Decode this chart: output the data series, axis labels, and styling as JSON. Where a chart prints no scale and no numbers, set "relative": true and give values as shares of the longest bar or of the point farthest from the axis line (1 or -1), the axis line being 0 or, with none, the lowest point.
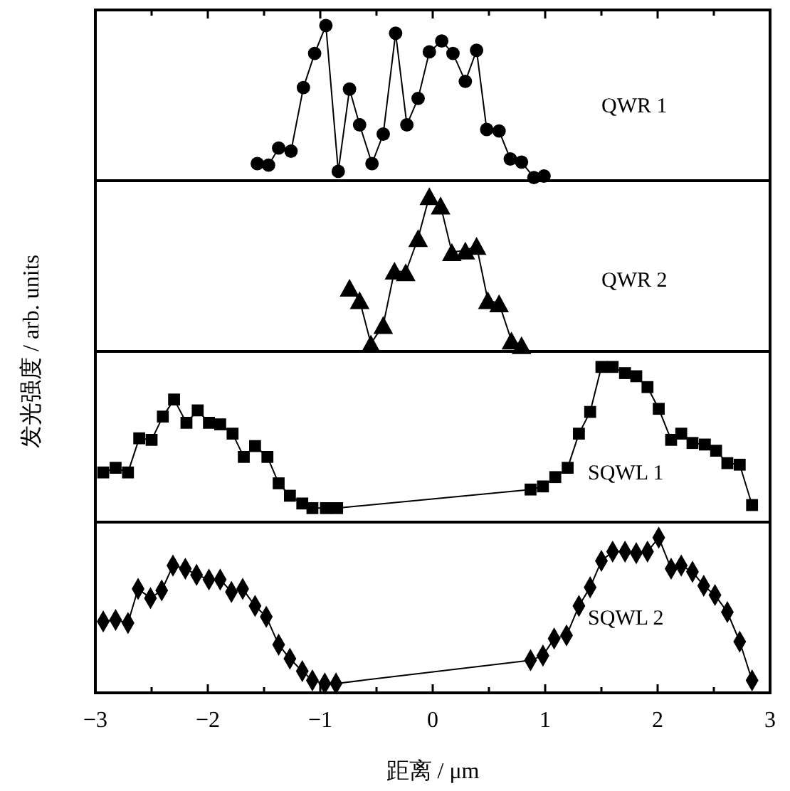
{
  "chart_data": [
    {
      "type": "line",
      "relative": true,
      "ylabel": "发光强度 / arb. units",
      "xlim": [
        -3,
        3
      ],
      "tick_labels": false,
      "marker": "circle",
      "line_style": "solid",
      "xticks": [
        {
          "value": -3,
          "label": null
        },
        {
          "value": -2.5,
          "label": null
        },
        {
          "value": -2,
          "label": null
        },
        {
          "value": -1.5,
          "label": null
        },
        {
          "value": -1,
          "label": null
        },
        {
          "value": -0.5,
          "label": null
        },
        {
          "value": 0,
          "label": null
        },
        {
          "value": 0.5,
          "label": null
        },
        {
          "value": 1,
          "label": null
        },
        {
          "value": 1.5,
          "label": null
        },
        {
          "value": 2,
          "label": null
        },
        {
          "value": 2.5,
          "label": null
        },
        {
          "value": 3,
          "label": null
        }
      ],
      "series": [
        {
          "name": "QWR 1",
          "color": "#000000",
          "x": [
            -1.56,
            -1.46,
            -1.37,
            -1.26,
            -1.15,
            -1.05,
            -0.95,
            -0.84,
            -0.74,
            -0.65,
            -0.54,
            -0.44,
            -0.33,
            -0.23,
            -0.13,
            -0.03,
            0.08,
            0.18,
            0.29,
            0.39,
            0.48,
            0.59,
            0.69,
            0.79,
            0.9,
            0.99
          ],
          "values": [
            0.11,
            0.1,
            0.21,
            0.19,
            0.6,
            0.82,
            1.0,
            0.06,
            0.59,
            0.36,
            0.11,
            0.3,
            0.95,
            0.36,
            0.53,
            0.83,
            0.9,
            0.82,
            0.64,
            0.84,
            0.33,
            0.32,
            0.14,
            0.12,
            0.02,
            0.03
          ]
        }
      ]
    },
    {
      "type": "line",
      "relative": true,
      "xlim": [
        -3,
        3
      ],
      "tick_labels": false,
      "marker": "triangle",
      "line_style": "solid",
      "series": [
        {
          "name": "QWR 2",
          "color": "#000000",
          "x": [
            -0.74,
            -0.65,
            -0.55,
            -0.44,
            -0.34,
            -0.24,
            -0.13,
            -0.03,
            0.07,
            0.17,
            0.29,
            0.39,
            0.49,
            0.59,
            0.7,
            0.79
          ],
          "values": [
            0.41,
            0.33,
            0.05,
            0.17,
            0.52,
            0.51,
            0.73,
            1.0,
            0.94,
            0.64,
            0.65,
            0.68,
            0.33,
            0.31,
            0.07,
            0.04
          ]
        }
      ]
    },
    {
      "type": "line",
      "relative": true,
      "xlim": [
        -3,
        3
      ],
      "tick_labels": false,
      "marker": "square",
      "line_style": "solid",
      "series": [
        {
          "name": "SQWL 1",
          "color": "#000000",
          "x": [
            -2.93,
            -2.82,
            -2.71,
            -2.61,
            -2.5,
            -2.4,
            -2.3,
            -2.19,
            -2.09,
            -1.99,
            -1.89,
            -1.78,
            -1.68,
            -1.58,
            -1.47,
            -1.37,
            -1.27,
            -1.16,
            -1.07,
            -0.95,
            -0.85,
            0.87,
            0.98,
            1.09,
            1.2,
            1.3,
            1.4,
            1.5,
            1.6,
            1.71,
            1.81,
            1.91,
            2.01,
            2.12,
            2.21,
            2.31,
            2.42,
            2.52,
            2.62,
            2.73,
            2.84
          ],
          "values": [
            0.32,
            0.35,
            0.32,
            0.54,
            0.53,
            0.68,
            0.79,
            0.64,
            0.72,
            0.64,
            0.63,
            0.57,
            0.42,
            0.49,
            0.42,
            0.25,
            0.17,
            0.12,
            0.09,
            0.09,
            0.09,
            0.21,
            0.23,
            0.29,
            0.35,
            0.57,
            0.71,
            1.0,
            1.0,
            0.96,
            0.94,
            0.87,
            0.73,
            0.53,
            0.57,
            0.51,
            0.5,
            0.46,
            0.38,
            0.37,
            0.11
          ]
        }
      ]
    },
    {
      "type": "line",
      "relative": true,
      "xlabel": "距离 / μm",
      "xlim": [
        -3,
        3
      ],
      "tick_labels": "x",
      "marker": "diamond",
      "line_style": "solid",
      "xticks": [
        {
          "value": -3,
          "label": "−3"
        },
        {
          "value": -2.5,
          "label": null
        },
        {
          "value": -2,
          "label": "−2"
        },
        {
          "value": -1.5,
          "label": null
        },
        {
          "value": -1,
          "label": "−1"
        },
        {
          "value": -0.5,
          "label": null
        },
        0,
        {
          "value": 0.5,
          "label": null
        },
        1,
        {
          "value": 1.5,
          "label": null
        },
        2,
        {
          "value": 2.5,
          "label": null
        },
        3
      ],
      "series": [
        {
          "name": "SQWL 2",
          "color": "#000000",
          "x": [
            -2.93,
            -2.82,
            -2.71,
            -2.62,
            -2.51,
            -2.41,
            -2.31,
            -2.2,
            -2.1,
            -1.99,
            -1.89,
            -1.79,
            -1.69,
            -1.58,
            -1.48,
            -1.37,
            -1.27,
            -1.16,
            -1.07,
            -0.96,
            -0.86,
            0.87,
            0.98,
            1.08,
            1.19,
            1.3,
            1.4,
            1.5,
            1.6,
            1.71,
            1.81,
            1.91,
            2.01,
            2.12,
            2.21,
            2.31,
            2.41,
            2.51,
            2.62,
            2.73,
            2.84
          ],
          "values": [
            0.46,
            0.47,
            0.45,
            0.67,
            0.61,
            0.66,
            0.82,
            0.8,
            0.76,
            0.73,
            0.73,
            0.65,
            0.67,
            0.56,
            0.49,
            0.31,
            0.22,
            0.14,
            0.08,
            0.06,
            0.06,
            0.21,
            0.24,
            0.35,
            0.37,
            0.56,
            0.68,
            0.85,
            0.91,
            0.91,
            0.9,
            0.91,
            1.0,
            0.8,
            0.82,
            0.78,
            0.69,
            0.63,
            0.52,
            0.33,
            0.08
          ]
        }
      ]
    }
  ]
}
